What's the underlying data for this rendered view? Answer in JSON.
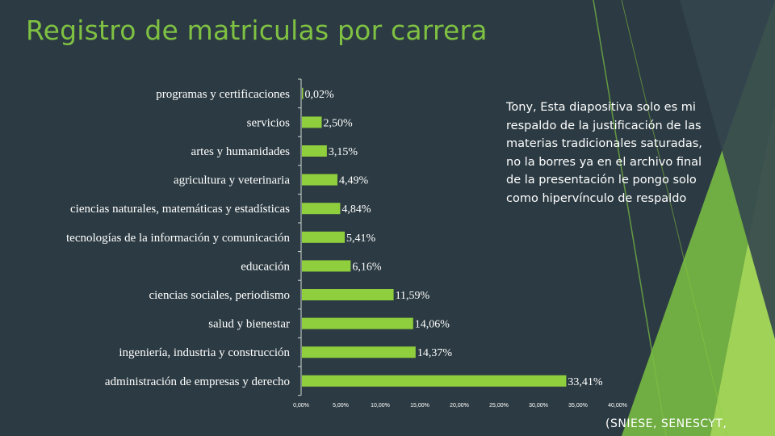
{
  "slide": {
    "title": "Registro de matriculas por carrera",
    "note": "Tony, Esta diapositiva solo es mi respaldo de la justificación de las materias tradicionales saturadas, no la borres ya en el archivo final de la presentación le pongo solo como hipervínculo de respaldo",
    "source": "(SNIESE, SENESCYT,",
    "colors": {
      "background": "#2c3b43",
      "accent": "#7fc142",
      "bar": "#8fce3c",
      "text": "#ffffff"
    }
  },
  "chart_data": {
    "type": "bar",
    "orientation": "horizontal",
    "categories": [
      "programas y certificaciones",
      "servicios",
      "artes y humanidades",
      "agricultura y veterinaria",
      "ciencias naturales, matemáticas y estadísticas",
      "tecnologías de la información y comunicación",
      "educación",
      "ciencias sociales, periodismo",
      "salud y bienestar",
      "ingeniería, industria y construcción",
      "administración de empresas y derecho"
    ],
    "values": [
      0.02,
      2.5,
      3.15,
      4.49,
      4.84,
      5.41,
      6.16,
      11.59,
      14.06,
      14.37,
      33.41
    ],
    "value_labels": [
      "0,02%",
      "2,50%",
      "3,15%",
      "4,49%",
      "4,84%",
      "5,41%",
      "6,16%",
      "11,59%",
      "14,06%",
      "14,37%",
      "33,41%"
    ],
    "xlim": [
      0,
      40
    ],
    "x_ticks": [
      0,
      5,
      10,
      15,
      20,
      25,
      30,
      35,
      40
    ],
    "x_tick_labels": [
      "0,00%",
      "5,00%",
      "10,00%",
      "15,00%",
      "20,00%",
      "25,00%",
      "30,00%",
      "35,00%",
      "40,00%"
    ],
    "grid": false,
    "legend": "none"
  }
}
